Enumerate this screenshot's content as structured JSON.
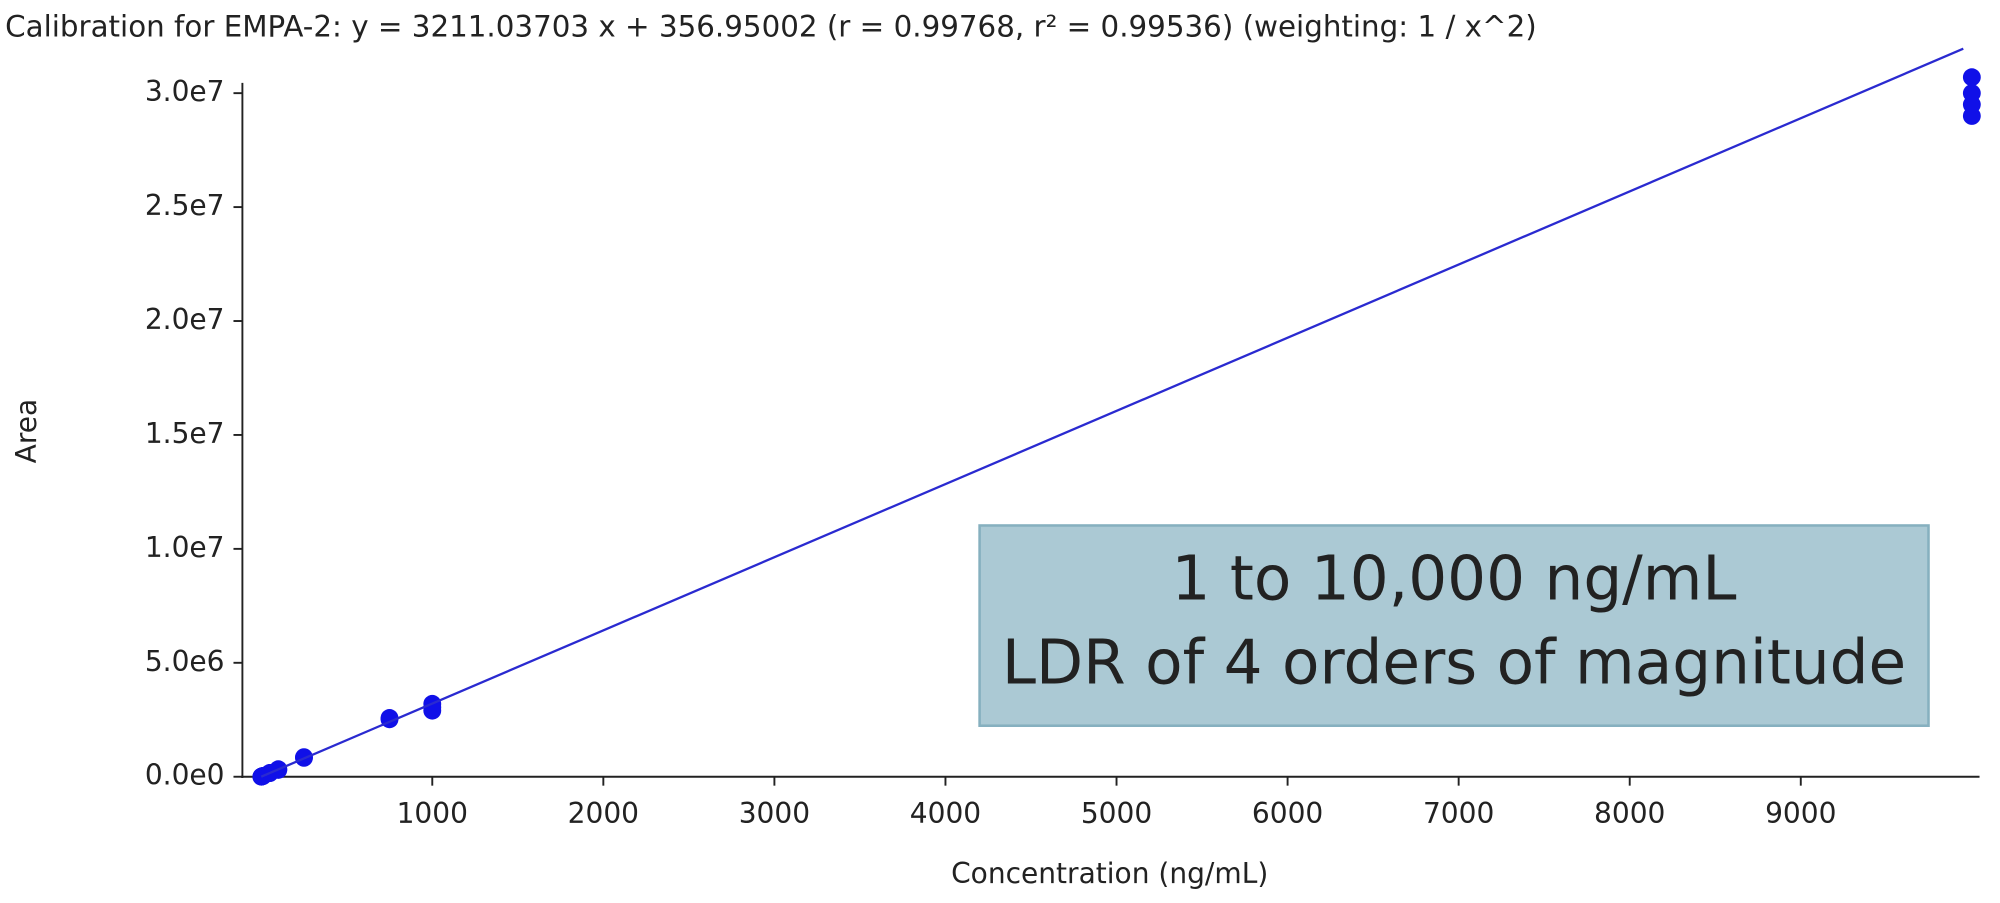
{
  "chart_data": {
    "type": "scatter",
    "title": "Calibration for EMPA-2: y = 3211.03703 x + 356.95002 (r = 0.99768, r² = 0.99536)  (weighting: 1 / x^2)",
    "x_label": "Concentration (ng/mL)",
    "y_label": "Area",
    "annotation": [
      "1 to 10,000 ng/mL",
      "LDR of 4 orders of magnitude"
    ],
    "xlim": [
      -110,
      10030
    ],
    "ylim": [
      0,
      30450000
    ],
    "xticks": [
      1000,
      2000,
      3000,
      4000,
      5000,
      6000,
      7000,
      8000,
      9000
    ],
    "yticks": [
      {
        "value": 0,
        "label": "0.0e0"
      },
      {
        "value": 5000000,
        "label": "5.0e6"
      },
      {
        "value": 10000000,
        "label": "1.0e7"
      },
      {
        "value": 15000000,
        "label": "1.5e7"
      },
      {
        "value": 20000000,
        "label": "2.0e7"
      },
      {
        "value": 25000000,
        "label": "2.5e7"
      },
      {
        "value": 30000000,
        "label": "3.0e7"
      }
    ],
    "series": [
      {
        "type": "scatter",
        "color": "#1010e8",
        "x": [
          1,
          1,
          5,
          5,
          10,
          10,
          50,
          50,
          100,
          100,
          250,
          250,
          750,
          750,
          1000,
          1000,
          1000,
          10000,
          10000,
          10000,
          10000
        ],
        "values": [
          3500,
          3700,
          16000,
          17000,
          32000,
          34000,
          160000,
          165000,
          300000,
          330000,
          830000,
          860000,
          2520000,
          2580000,
          2900000,
          3050000,
          3200000,
          29000000,
          29500000,
          30000000,
          30700000
        ]
      },
      {
        "type": "line",
        "color": "#2a2ad0",
        "x": [
          0,
          9950
        ],
        "values": [
          356.95,
          31950315
        ]
      }
    ]
  }
}
